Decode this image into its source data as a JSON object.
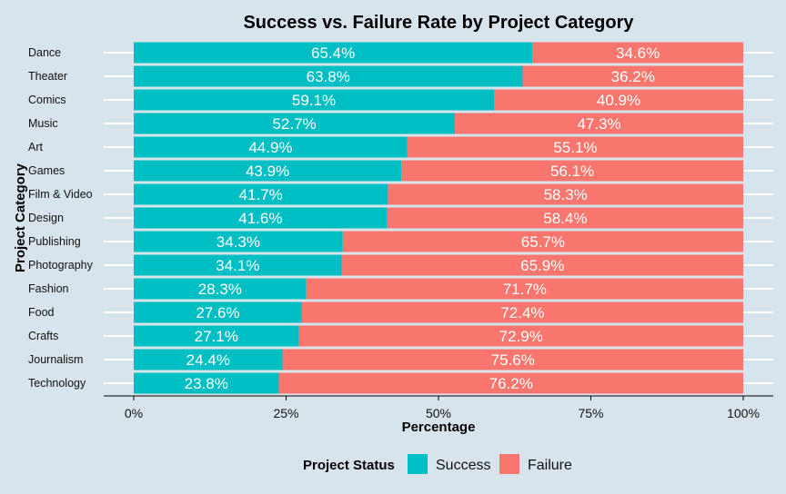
{
  "chart_data": {
    "type": "bar",
    "orientation": "horizontal",
    "stacked": true,
    "title": "Success vs. Failure Rate by Project Category",
    "xlabel": "Percentage",
    "ylabel": "Project Category",
    "xlim": [
      0,
      100
    ],
    "xticks": [
      0,
      25,
      50,
      75,
      100
    ],
    "xtick_labels": [
      "0%",
      "25%",
      "50%",
      "75%",
      "100%"
    ],
    "grid": "horizontal-major",
    "legend": {
      "title": "Project Status",
      "placement": "bottom"
    },
    "categories": [
      "Dance",
      "Theater",
      "Comics",
      "Music",
      "Art",
      "Games",
      "Film & Video",
      "Design",
      "Publishing",
      "Photography",
      "Fashion",
      "Food",
      "Crafts",
      "Journalism",
      "Technology"
    ],
    "series": [
      {
        "name": "Success",
        "color": "#00bfc4",
        "values": [
          65.4,
          63.8,
          59.1,
          52.7,
          44.9,
          43.9,
          41.7,
          41.6,
          34.3,
          34.1,
          28.3,
          27.6,
          27.1,
          24.4,
          23.8
        ]
      },
      {
        "name": "Failure",
        "color": "#f8766d",
        "values": [
          34.6,
          36.2,
          40.9,
          47.3,
          55.1,
          56.1,
          58.3,
          58.4,
          65.7,
          65.9,
          71.7,
          72.4,
          72.9,
          75.6,
          76.2
        ]
      }
    ],
    "value_labels": [
      [
        "65.4%",
        "63.8%",
        "59.1%",
        "52.7%",
        "44.9%",
        "43.9%",
        "41.7%",
        "41.6%",
        "34.3%",
        "34.1%",
        "28.3%",
        "27.6%",
        "27.1%",
        "24.4%",
        "23.8%"
      ],
      [
        "34.6%",
        "36.2%",
        "40.9%",
        "47.3%",
        "55.1%",
        "56.1%",
        "58.3%",
        "58.4%",
        "65.7%",
        "65.9%",
        "71.7%",
        "72.4%",
        "72.9%",
        "75.6%",
        "76.2%"
      ]
    ]
  }
}
